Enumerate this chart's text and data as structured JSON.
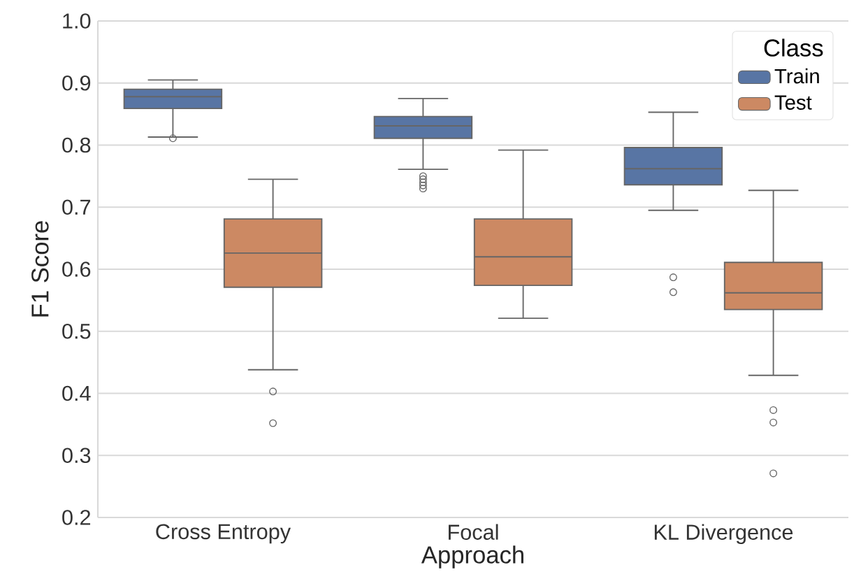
{
  "chart_data": {
    "type": "box",
    "xlabel": "Approach",
    "ylabel": "F1 Score",
    "legend_title": "Class",
    "categories": [
      "Cross Entropy",
      "Focal",
      "KL Divergence"
    ],
    "series": [
      {
        "name": "Train",
        "color": "#5875a4",
        "boxes": [
          {
            "low": 0.813,
            "q1": 0.859,
            "median": 0.878,
            "q3": 0.89,
            "high": 0.905,
            "outliers": [
              0.811
            ]
          },
          {
            "low": 0.761,
            "q1": 0.811,
            "median": 0.831,
            "q3": 0.846,
            "high": 0.875,
            "outliers": [
              0.75,
              0.745,
              0.74,
              0.735,
              0.73
            ]
          },
          {
            "low": 0.695,
            "q1": 0.736,
            "median": 0.762,
            "q3": 0.796,
            "high": 0.853,
            "outliers": [
              0.587,
              0.563
            ]
          }
        ]
      },
      {
        "name": "Test",
        "color": "#cc8963",
        "boxes": [
          {
            "low": 0.438,
            "q1": 0.571,
            "median": 0.626,
            "q3": 0.681,
            "high": 0.745,
            "outliers": [
              0.403,
              0.352
            ]
          },
          {
            "low": 0.521,
            "q1": 0.574,
            "median": 0.62,
            "q3": 0.681,
            "high": 0.792
          },
          {
            "low": 0.429,
            "q1": 0.535,
            "median": 0.562,
            "q3": 0.611,
            "high": 0.727,
            "outliers": [
              0.373,
              0.353,
              0.271
            ]
          }
        ]
      }
    ],
    "ylim": [
      0.2,
      1.0
    ],
    "yticks": [
      0.2,
      0.3,
      0.4,
      0.5,
      0.6,
      0.7,
      0.8,
      0.9,
      {
        "value": 1,
        "label": "1.0"
      }
    ],
    "grid": "y",
    "legend": "top right"
  }
}
